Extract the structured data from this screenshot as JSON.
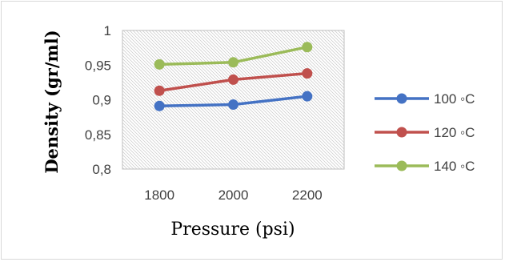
{
  "chart_data": {
    "type": "line",
    "x": [
      1800,
      2000,
      2200
    ],
    "categories": [
      "1800",
      "2000",
      "2200"
    ],
    "series": [
      {
        "name": "100 ◦C",
        "values": [
          0.891,
          0.893,
          0.905
        ],
        "color": "#4472c4"
      },
      {
        "name": "120 ◦C",
        "values": [
          0.913,
          0.929,
          0.938
        ],
        "color": "#c0504d"
      },
      {
        "name": "140 ◦C",
        "values": [
          0.951,
          0.954,
          0.976
        ],
        "color": "#9bbb59"
      }
    ],
    "xlabel": "Pressure (psi)",
    "ylabel": "Density (gr/ml)",
    "ylim": [
      0.8,
      1.0
    ],
    "yticks": [
      "0,8",
      "0,85",
      "0,9",
      "0,95",
      "1"
    ],
    "grid": false,
    "plot_area_fill": "hatched",
    "legend_position": "right"
  }
}
